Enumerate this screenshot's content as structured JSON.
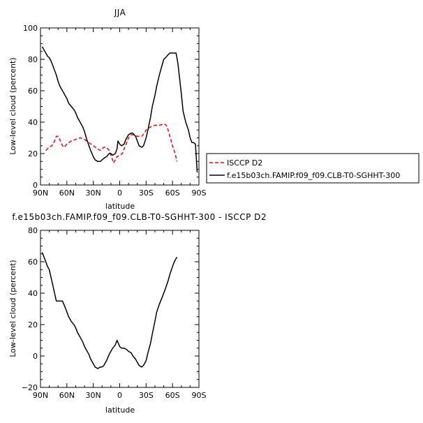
{
  "chart_data": [
    {
      "type": "line",
      "title": "JJA",
      "xlabel": "latitude",
      "ylabel": "Low-level cloud (percent)",
      "xlim": [
        90,
        -90
      ],
      "ylim": [
        0,
        100
      ],
      "x_tick_values": [
        90,
        60,
        30,
        0,
        -30,
        -60,
        -90
      ],
      "x_tick_labels": [
        "90N",
        "60N",
        "30N",
        "0",
        "30S",
        "60S",
        "90S"
      ],
      "y_tick_values": [
        0,
        20,
        40,
        60,
        80,
        100
      ],
      "y_tick_labels": [
        "0",
        "20",
        "40",
        "60",
        "80",
        "100"
      ],
      "legend_position": "right",
      "series": [
        {
          "name": "ISCCP D2",
          "color": "#ff0000",
          "dash": "dashed",
          "x": [
            84,
            80,
            77,
            74,
            72,
            70,
            68,
            65,
            63,
            60,
            55,
            50,
            45,
            40,
            35,
            30,
            25,
            22,
            18,
            15,
            12,
            10,
            7,
            5,
            3,
            0,
            -3,
            -5,
            -8,
            -10,
            -13,
            -15,
            -20,
            -25,
            -28,
            -30,
            -35,
            -40,
            -45,
            -50,
            -53,
            -55,
            -58,
            -60,
            -63,
            -65
          ],
          "y": [
            22,
            24,
            25,
            28,
            31,
            31,
            29,
            25,
            24,
            26,
            28,
            29,
            30,
            29,
            27,
            25,
            23,
            22,
            24,
            24,
            22,
            19,
            14,
            16,
            18,
            19,
            20,
            23,
            27,
            30,
            32,
            32,
            31,
            31,
            33,
            35,
            37,
            38,
            38,
            39,
            38,
            35,
            29,
            25,
            20,
            15
          ]
        },
        {
          "name": "f.e15b03ch.FAMIP.f09_f09.CLB-T0-SGHHT-300",
          "color": "#000000",
          "dash": "solid",
          "x": [
            88,
            86,
            84,
            82,
            80,
            78,
            76,
            74,
            72,
            70,
            68,
            65,
            62,
            60,
            58,
            55,
            52,
            50,
            48,
            45,
            42,
            40,
            38,
            35,
            33,
            30,
            28,
            25,
            22,
            20,
            18,
            15,
            12,
            10,
            8,
            5,
            3,
            2,
            0,
            -2,
            -5,
            -7,
            -10,
            -13,
            -15,
            -18,
            -20,
            -22,
            -25,
            -27,
            -30,
            -32,
            -35,
            -37,
            -40,
            -42,
            -45,
            -48,
            -50,
            -52,
            -55,
            -57,
            -60,
            -62,
            -64,
            -66,
            -68,
            -70,
            -72,
            -75,
            -78,
            -80,
            -82,
            -84,
            -86,
            -88
          ],
          "y": [
            88,
            86,
            84,
            82,
            81,
            79,
            76,
            73,
            70,
            66,
            63,
            60,
            57,
            55,
            52,
            50,
            48,
            46,
            43,
            40,
            37,
            34,
            30,
            25,
            22,
            18,
            16,
            15,
            15,
            16,
            17,
            18,
            20,
            20,
            19,
            20,
            23,
            28,
            26,
            25,
            26,
            29,
            32,
            33,
            33,
            31,
            28,
            25,
            24,
            25,
            30,
            35,
            43,
            50,
            57,
            63,
            70,
            76,
            80,
            81,
            83,
            84,
            84,
            84,
            84,
            78,
            68,
            58,
            47,
            40,
            35,
            30,
            27,
            27,
            26,
            8
          ]
        }
      ]
    },
    {
      "type": "line",
      "title": "f.e15b03ch.FAMIP.f09_f09.CLB-T0-SGHHT-300  -  ISCCP D2",
      "xlabel": "latitude",
      "ylabel": "Low-level cloud (percent)",
      "xlim": [
        90,
        -90
      ],
      "ylim": [
        -20,
        80
      ],
      "x_tick_values": [
        90,
        60,
        30,
        0,
        -30,
        -60,
        -90
      ],
      "x_tick_labels": [
        "90N",
        "60N",
        "30N",
        "0",
        "30S",
        "60S",
        "90S"
      ],
      "y_tick_values": [
        -20,
        0,
        20,
        40,
        60,
        80
      ],
      "y_tick_labels": [
        "−20",
        "0",
        "20",
        "40",
        "60",
        "80"
      ],
      "series": [
        {
          "color": "#000000",
          "dash": "solid",
          "x": [
            88,
            86,
            84,
            82,
            80,
            78,
            76,
            74,
            72,
            70,
            68,
            65,
            62,
            60,
            58,
            55,
            52,
            50,
            48,
            45,
            42,
            40,
            38,
            35,
            33,
            30,
            28,
            25,
            22,
            20,
            18,
            15,
            12,
            10,
            8,
            5,
            3,
            0,
            -2,
            -5,
            -8,
            -10,
            -13,
            -15,
            -18,
            -20,
            -22,
            -25,
            -27,
            -30,
            -32,
            -35,
            -37,
            -40,
            -42,
            -45,
            -48,
            -50,
            -52,
            -55,
            -57,
            -60,
            -62,
            -64,
            -65
          ],
          "y": [
            66,
            63,
            60,
            57,
            55,
            50,
            45,
            40,
            35,
            35,
            35,
            35,
            31,
            28,
            25,
            22,
            20,
            18,
            15,
            12,
            9,
            6,
            4,
            1,
            -2,
            -5,
            -7,
            -8,
            -7,
            -7,
            -6,
            -3,
            1,
            3,
            5,
            7,
            10,
            6,
            5,
            5,
            4,
            3,
            2,
            0,
            -2,
            -4,
            -6,
            -7,
            -6,
            -3,
            2,
            8,
            14,
            22,
            28,
            33,
            37,
            40,
            43,
            48,
            52,
            57,
            60,
            62,
            63
          ]
        }
      ]
    }
  ]
}
